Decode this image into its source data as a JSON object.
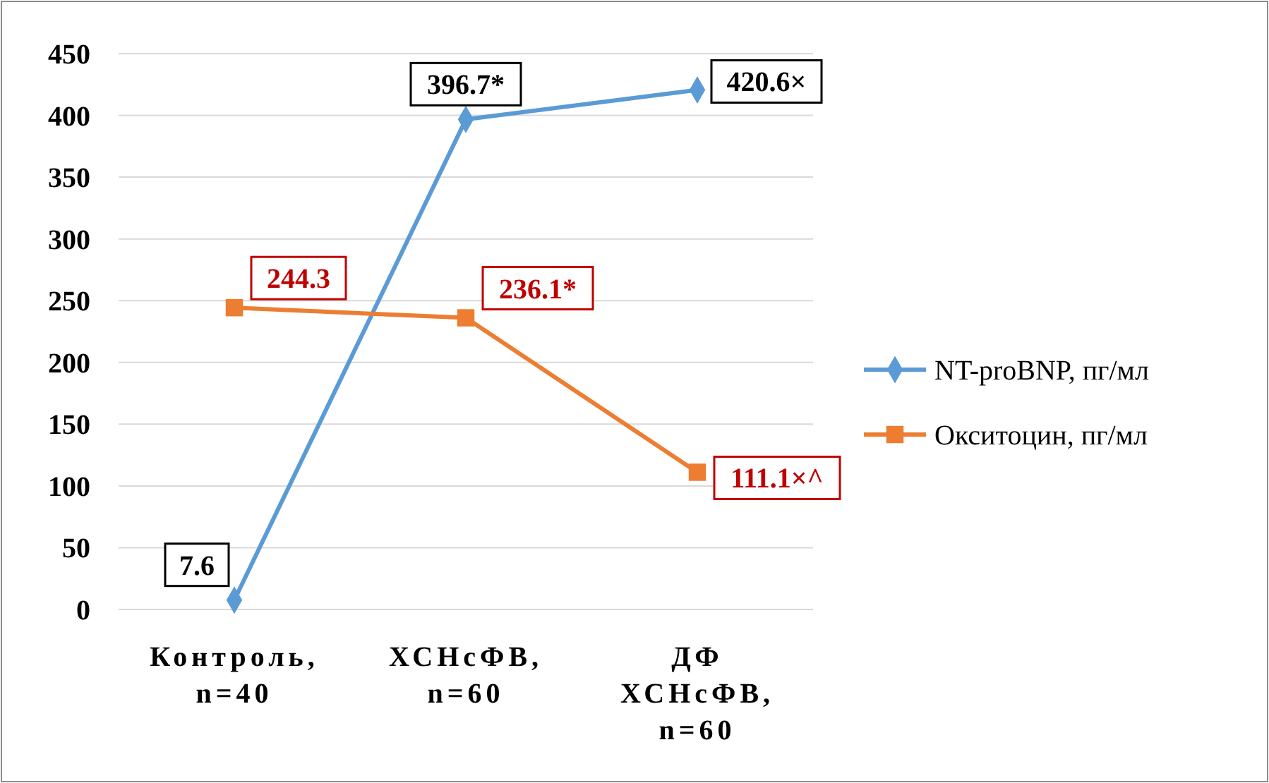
{
  "chart_data": {
    "type": "line",
    "categories": [
      "Контроль, n=40",
      "ХСНсФВ, n=60",
      "ДФ ХСНсФВ, n=60"
    ],
    "series": [
      {
        "name": "NT-proBNP, пг/мл",
        "color": "#5b9bd5",
        "marker": "diamond",
        "values": [
          7.6,
          396.7,
          420.6
        ],
        "value_labels": [
          "7.6",
          "396.7*",
          "420.6×"
        ]
      },
      {
        "name": "Окситоцин, пг/мл",
        "color": "#ed7d31",
        "marker": "square",
        "values": [
          244.3,
          236.1,
          111.1
        ],
        "value_labels": [
          "244.3",
          "236.1*",
          "111.1×^"
        ]
      }
    ],
    "ylim": [
      0,
      450
    ],
    "yticks": [
      0,
      50,
      100,
      150,
      200,
      250,
      300,
      350,
      400,
      450
    ],
    "grid": "y",
    "legend": "right"
  }
}
